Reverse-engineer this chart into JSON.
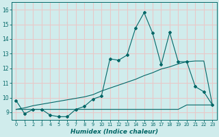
{
  "xlabel": "Humidex (Indice chaleur)",
  "x": [
    0,
    1,
    2,
    3,
    4,
    5,
    6,
    7,
    8,
    9,
    10,
    11,
    12,
    13,
    14,
    15,
    16,
    17,
    18,
    19,
    20,
    21,
    22,
    23
  ],
  "y_main": [
    9.8,
    8.9,
    9.2,
    9.2,
    8.8,
    8.7,
    8.7,
    9.2,
    9.4,
    9.9,
    10.1,
    12.65,
    12.55,
    12.9,
    14.75,
    15.8,
    14.4,
    12.25,
    14.45,
    12.45,
    12.45,
    10.75,
    10.4,
    9.5
  ],
  "y_diag": [
    9.2,
    9.3,
    9.45,
    9.55,
    9.65,
    9.75,
    9.85,
    9.95,
    10.05,
    10.2,
    10.45,
    10.65,
    10.85,
    11.05,
    11.25,
    11.5,
    11.7,
    11.95,
    12.1,
    12.3,
    12.45,
    12.5,
    12.5,
    9.5
  ],
  "y_flat": [
    9.2,
    9.2,
    9.2,
    9.2,
    9.2,
    9.2,
    9.2,
    9.2,
    9.2,
    9.2,
    9.2,
    9.2,
    9.2,
    9.2,
    9.2,
    9.2,
    9.2,
    9.2,
    9.2,
    9.2,
    9.5,
    9.5,
    9.5,
    9.5
  ],
  "line_color": "#006666",
  "bg_color": "#d0ecec",
  "grid_color": "#e8c8c8",
  "ylim": [
    8.5,
    16.5
  ],
  "yticks": [
    9,
    10,
    11,
    12,
    13,
    14,
    15,
    16
  ],
  "xlim": [
    -0.5,
    23.5
  ],
  "xticks": [
    0,
    1,
    2,
    3,
    4,
    5,
    6,
    7,
    8,
    9,
    10,
    11,
    12,
    13,
    14,
    15,
    16,
    17,
    18,
    19,
    20,
    21,
    22,
    23
  ]
}
